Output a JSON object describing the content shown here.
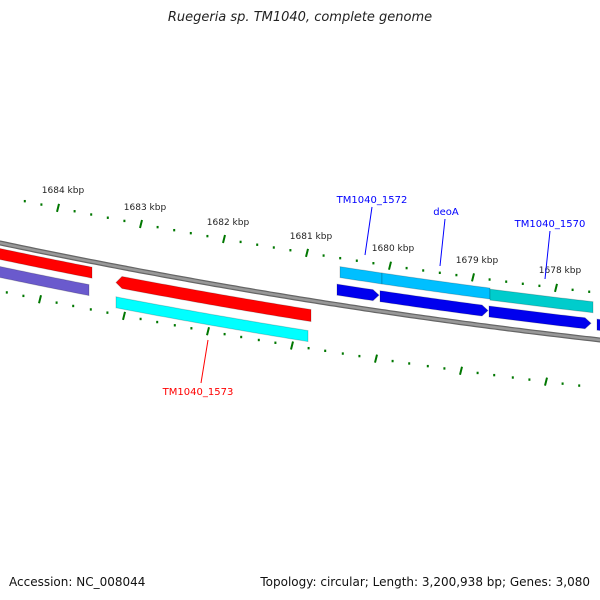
{
  "title": "Ruegeria sp. TM1040, complete genome",
  "footer": {
    "accession": "Accession: NC_008044",
    "summary": "Topology: circular; Length: 3,200,938 bp; Genes: 3,080"
  },
  "ticks": [
    "1684 kbp",
    "1683 kbp",
    "1682 kbp",
    "1681 kbp",
    "1680 kbp",
    "1679 kbp",
    "1678 kbp"
  ],
  "gene_labels": [
    {
      "text": "TM1040_1573",
      "color": "#ff0000"
    },
    {
      "text": "TM1040_1572",
      "color": "#0000ff"
    },
    {
      "text": "deoA",
      "color": "#0000ff"
    },
    {
      "text": "TM1040_1570",
      "color": "#0000ff"
    }
  ],
  "colors": {
    "cds_reverse": "#ff0000",
    "rna_reverse": "#00ffff",
    "cds_forward": "#0000ee",
    "rna_forward": "#00bfff",
    "rna_forward2": "#00cccc",
    "other": "#6a5acd",
    "backbone": "#888888",
    "ticks": "#007700"
  }
}
